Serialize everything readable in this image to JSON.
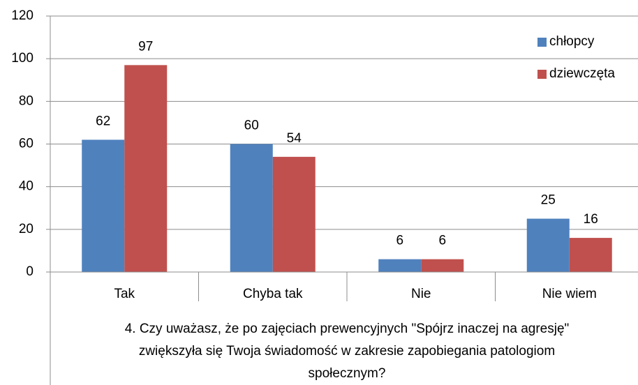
{
  "chart_data": {
    "type": "bar",
    "categories": [
      "Tak",
      "Chyba tak",
      "Nie",
      "Nie wiem"
    ],
    "series": [
      {
        "name": "chłopcy",
        "color": "#4f81bd",
        "values": [
          62,
          60,
          6,
          25
        ]
      },
      {
        "name": "dziewczęta",
        "color": "#c0504d",
        "values": [
          97,
          54,
          6,
          16
        ]
      }
    ],
    "ylim": [
      0,
      120
    ],
    "yticks": [
      0,
      20,
      40,
      60,
      80,
      100,
      120
    ],
    "grid": true,
    "legend": "upper right",
    "x_label": [
      "4. Czy uważasz, że po zajęciach prewencyjnych \"Spójrz inaczej na agresję\"",
      "zwiększyła się Twoja świadomość w zakresie zapobiegania patologiom",
      "społecznym?"
    ]
  }
}
